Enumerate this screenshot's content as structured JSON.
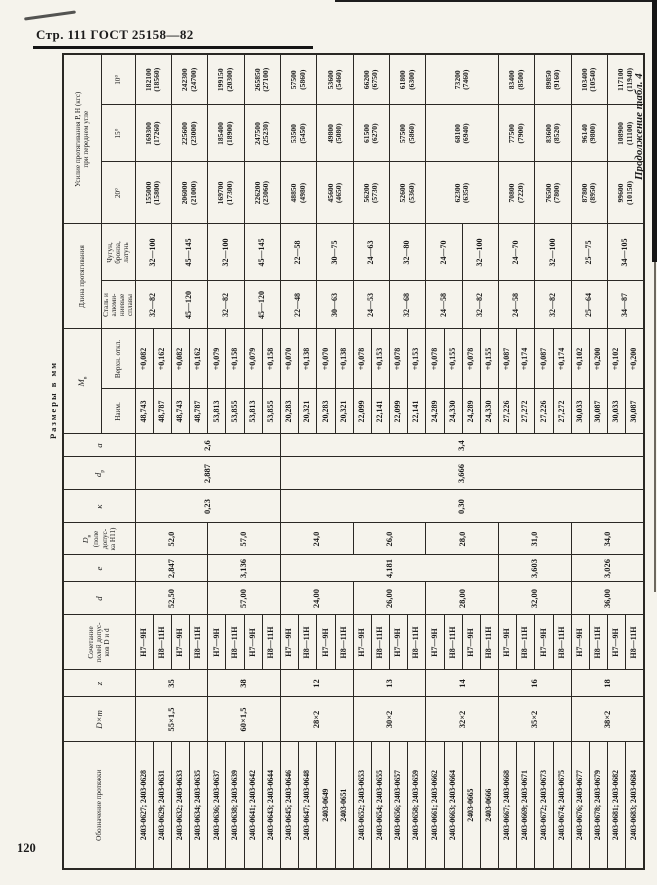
{
  "page": {
    "header": "Стр. 111 ГОСТ 25158—82",
    "continuation": "Продолжение табл. 4",
    "units_note": "Размеры в мм",
    "page_number": "120"
  },
  "table": {
    "headers": {
      "designation": "Обозначение протяжки",
      "dxm": "D×m",
      "z": "z",
      "combo": "Сочетание\nполей допус-\nков D и d",
      "d": "d",
      "e": "e",
      "dv_base": "D",
      "dv_sub": "в",
      "dv_note": "(поле\nдопус-\nка Н11)",
      "k": "к",
      "dr_base": "d",
      "dr_sub": "р",
      "a": "а",
      "mv_base": "М",
      "mv_sub": "в",
      "mv_nom": "Наим.",
      "mv_dev": "Верхн. откл.",
      "length_group": "Длина протягивания",
      "length_steel": "Сталь и\nалюми-\nниевые\nсплавы",
      "length_iron": "Чугун,\nбронза,\nлатунь",
      "force_group": "Усилие протягивания Р, Н (кгс)\nпри переднем угле",
      "force_20": "20°",
      "force_15": "15°",
      "force_10": "10°"
    },
    "size_groups": [
      {
        "dxm": "55×1,5",
        "z": "35",
        "d": "52,50",
        "dv": "52,0"
      },
      {
        "dxm": "60×1,5",
        "z": "38",
        "d": "57,00",
        "dv": "57,0"
      },
      {
        "dxm": "28×2",
        "z": "12",
        "d": "24,00",
        "dv": "24,0"
      },
      {
        "dxm": "30×2",
        "z": "13",
        "d": "26,00",
        "dv": "26,0"
      },
      {
        "dxm": "32×2",
        "z": "14",
        "d": "28,00",
        "dv": "28,0"
      },
      {
        "dxm": "35×2",
        "z": "16",
        "d": "32,00",
        "dv": "31,0"
      },
      {
        "dxm": "38×2",
        "z": "18",
        "d": "36,00",
        "dv": "34,0"
      }
    ],
    "e_cells": [
      {
        "span": 4,
        "v": "2,847"
      },
      {
        "span": 4,
        "v": "3,136"
      },
      {
        "span": 12,
        "v": "4,181"
      },
      {
        "span": 4,
        "v": "3,603"
      },
      {
        "span": 4,
        "v": "3,026"
      }
    ],
    "k_cells": [
      {
        "span": 8,
        "v": "0,23"
      },
      {
        "span": 20,
        "v": "0,30"
      }
    ],
    "dr_cells": [
      {
        "span": 8,
        "v": "2,887"
      },
      {
        "span": 20,
        "v": "3,666"
      }
    ],
    "a_cells": [
      {
        "span": 8,
        "v": "2,6"
      },
      {
        "span": 20,
        "v": "3,4"
      }
    ],
    "rows": [
      {
        "designation": "2403-0627; 2403-0628",
        "combo": "Н7—9Н",
        "mv_nom": "48,743",
        "mv_dev": "+0,082"
      },
      {
        "designation": "2403-0629; 2403-0631",
        "combo": "Н8—11Н",
        "mv_nom": "48,787",
        "mv_dev": "+0,162"
      },
      {
        "designation": "2403-0632; 2403-0633",
        "combo": "Н7—9Н",
        "mv_nom": "48,743",
        "mv_dev": "+0,082"
      },
      {
        "designation": "2403-0634; 2403-0635",
        "combo": "Н8—11Н",
        "mv_nom": "48,787",
        "mv_dev": "+0,162"
      },
      {
        "designation": "2403-0636; 2403-0637",
        "combo": "Н7—9Н",
        "mv_nom": "53,813",
        "mv_dev": "+0,079"
      },
      {
        "designation": "2403-0638; 2403-0639",
        "combo": "Н8—11Н",
        "mv_nom": "53,855",
        "mv_dev": "+0,158"
      },
      {
        "designation": "2403-0641; 2403-0642",
        "combo": "Н7—9Н",
        "mv_nom": "53,813",
        "mv_dev": "+0,079"
      },
      {
        "designation": "2403-0643; 2403-0644",
        "combo": "Н8—11Н",
        "mv_nom": "53,855",
        "mv_dev": "+0,158"
      },
      {
        "designation": "2403-0645; 2403-0646",
        "combo": "Н7—9Н",
        "mv_nom": "20,283",
        "mv_dev": "+0,070"
      },
      {
        "designation": "2403-0647; 2403-0648",
        "combo": "Н8—11Н",
        "mv_nom": "20,321",
        "mv_dev": "+0,138"
      },
      {
        "designation": "2403-0649",
        "combo": "Н7—9Н",
        "mv_nom": "20,283",
        "mv_dev": "+0,070"
      },
      {
        "designation": "2403-0651",
        "combo": "Н8—11Н",
        "mv_nom": "20,321",
        "mv_dev": "+0,138"
      },
      {
        "designation": "2403-0652; 2403-0653",
        "combo": "Н7—9Н",
        "mv_nom": "22,099",
        "mv_dev": "+0,078"
      },
      {
        "designation": "2403-0654; 2403-0655",
        "combo": "Н8—11Н",
        "mv_nom": "22,141",
        "mv_dev": "+0,153"
      },
      {
        "designation": "2403-0656; 2403-0657",
        "combo": "Н7—9Н",
        "mv_nom": "22,099",
        "mv_dev": "+0,078"
      },
      {
        "designation": "2403-0658; 2403-0659",
        "combo": "Н8—11Н",
        "mv_nom": "22,141",
        "mv_dev": "+0,153"
      },
      {
        "designation": "2403-0661; 2403-0662",
        "combo": "Н7—9Н",
        "mv_nom": "24,289",
        "mv_dev": "+0,078"
      },
      {
        "designation": "2403-0663; 2403-0664",
        "combo": "Н8—11Н",
        "mv_nom": "24,330",
        "mv_dev": "+0,155"
      },
      {
        "designation": "2403-0665",
        "combo": "Н7—9Н",
        "mv_nom": "24,289",
        "mv_dev": "+0,078"
      },
      {
        "designation": "2403-0666",
        "combo": "Н8—11Н",
        "mv_nom": "24,330",
        "mv_dev": "+0,155"
      },
      {
        "designation": "2403-0667; 2403-0668",
        "combo": "Н7—9Н",
        "mv_nom": "27,226",
        "mv_dev": "+0,087"
      },
      {
        "designation": "2403-0669; 2403-0671",
        "combo": "Н8—11Н",
        "mv_nom": "27,272",
        "mv_dev": "+0,174"
      },
      {
        "designation": "2403-0672; 2403-0673",
        "combo": "Н7—9Н",
        "mv_nom": "27,226",
        "mv_dev": "+0,087"
      },
      {
        "designation": "2403-0674; 2403-0675",
        "combo": "Н8—11Н",
        "mv_nom": "27,272",
        "mv_dev": "+0,174"
      },
      {
        "designation": "2403-0676; 2403-0677",
        "combo": "Н7—9Н",
        "mv_nom": "30,033",
        "mv_dev": "+0,102"
      },
      {
        "designation": "2403-0678; 2403-0679",
        "combo": "Н8—11Н",
        "mv_nom": "30,087",
        "mv_dev": "+0,200"
      },
      {
        "designation": "2403-0681; 2403-0682",
        "combo": "Н7—9Н",
        "mv_nom": "30,033",
        "mv_dev": "+0,102"
      },
      {
        "designation": "2403-0683; 2403-0684",
        "combo": "Н8—11Н",
        "mv_nom": "30,087",
        "mv_dev": "+0,200"
      }
    ],
    "length_cells": [
      {
        "steel": "32—82",
        "iron": "32—100"
      },
      {
        "steel": "45—120",
        "iron": "45—145"
      },
      {
        "steel": "32—82",
        "iron": "32—100"
      },
      {
        "steel": "45—120",
        "iron": "45—145"
      },
      {
        "steel": "22—48",
        "iron": "22—58"
      },
      {
        "steel": "30—63",
        "iron": "30—75"
      },
      {
        "steel": "24—53",
        "iron": "24—63"
      },
      {
        "steel": "32—68",
        "iron": "32—80"
      },
      {
        "steel": "24—58",
        "iron": "24—70"
      },
      {
        "steel": "32—82",
        "iron": "32—100"
      },
      {
        "steel": "24—58",
        "iron": "24—70"
      },
      {
        "steel": "32—82",
        "iron": "32—100"
      },
      {
        "steel": "25—64",
        "iron": "25—75"
      },
      {
        "steel": "34—87",
        "iron": "34—105"
      }
    ],
    "force_cells": [
      {
        "span": 2,
        "f20": [
          "155000",
          "(15800)"
        ],
        "f15": [
          "169300",
          "(17260)"
        ],
        "f10": [
          "182100",
          "(18560)"
        ]
      },
      {
        "span": 2,
        "f20": [
          "206000",
          "(21000)"
        ],
        "f15": [
          "225600",
          "(23000)"
        ],
        "f10": [
          "242300",
          "(24700)"
        ]
      },
      {
        "span": 2,
        "f20": [
          "169700",
          "(17300)"
        ],
        "f15": [
          "185400",
          "(18900)"
        ],
        "f10": [
          "199150",
          "(20300)"
        ]
      },
      {
        "span": 2,
        "f20": [
          "226200",
          "(23060)"
        ],
        "f15": [
          "247500",
          "(25230)"
        ],
        "f10": [
          "265850",
          "(27100)"
        ]
      },
      {
        "span": 2,
        "f20": [
          "48850",
          "(4980)"
        ],
        "f15": [
          "53500",
          "(5450)"
        ],
        "f10": [
          "57500",
          "(5860)"
        ]
      },
      {
        "span": 2,
        "f20": [
          "45600",
          "(4650)"
        ],
        "f15": [
          "49800",
          "(5080)"
        ],
        "f10": [
          "53600",
          "(5460)"
        ]
      },
      {
        "span": 2,
        "f20": [
          "56200",
          "(5730)"
        ],
        "f15": [
          "61500",
          "(6270)"
        ],
        "f10": [
          "66200",
          "(6750)"
        ]
      },
      {
        "span": 2,
        "f20": [
          "52600",
          "(5360)"
        ],
        "f15": [
          "57500",
          "(5860)"
        ],
        "f10": [
          "61800",
          "(6300)"
        ]
      },
      {
        "span": 4,
        "f20": [
          "62300",
          "(6350)"
        ],
        "f15": [
          "68100",
          "(6940)"
        ],
        "f10": [
          "73200",
          "(7460)"
        ]
      },
      {
        "span": 2,
        "f20": [
          "70800",
          "(7220)"
        ],
        "f15": [
          "77500",
          "(7900)"
        ],
        "f10": [
          "83400",
          "(8500)"
        ]
      },
      {
        "span": 2,
        "f20": [
          "76500",
          "(7800)"
        ],
        "f15": [
          "83600",
          "(8520)"
        ],
        "f10": [
          "89850",
          "(9160)"
        ]
      },
      {
        "span": 2,
        "f20": [
          "87800",
          "(8950)"
        ],
        "f15": [
          "96140",
          "(9800)"
        ],
        "f10": [
          "103400",
          "(10540)"
        ]
      },
      {
        "span": 2,
        "f20": [
          "99600",
          "(10150)"
        ],
        "f15": [
          "108900",
          "(11100)"
        ],
        "f10": [
          "117100",
          "(11940)"
        ]
      }
    ]
  }
}
